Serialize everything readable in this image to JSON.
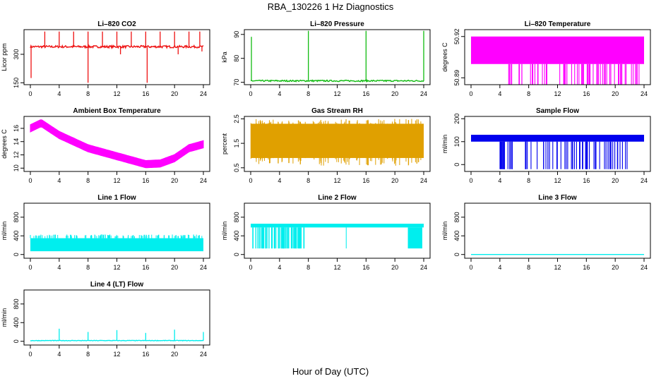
{
  "figure": {
    "title": "RBA_130226  1 Hz Diagnostics",
    "xlabel": "Hour of Day (UTC)"
  },
  "chart_data": [
    {
      "type": "line",
      "title": "Li–820 CO2",
      "ylabel": "Licor ppm",
      "color": "#ee1111",
      "xlim": [
        0,
        24
      ],
      "xticks": [
        0,
        4,
        8,
        12,
        16,
        20,
        24
      ],
      "ylim": [
        140,
        430
      ],
      "yticks": [
        150,
        300
      ],
      "series": [
        {
          "name": "CO2",
          "style": "flat",
          "base": 340,
          "noise": 6,
          "spikes_up": [
            [
              2,
              420
            ],
            [
              4,
              420
            ],
            [
              6,
              420
            ],
            [
              8,
              420
            ],
            [
              10,
              420
            ],
            [
              12,
              420
            ],
            [
              14,
              420
            ],
            [
              16,
              420
            ],
            [
              18,
              420
            ],
            [
              20,
              420
            ],
            [
              22,
              420
            ],
            [
              23.5,
              420
            ]
          ],
          "spikes_down": [
            [
              0.1,
              175
            ],
            [
              8,
              150
            ],
            [
              16.2,
              150
            ],
            [
              12.5,
              300
            ],
            [
              20.5,
              300
            ],
            [
              23.8,
              315
            ]
          ]
        }
      ]
    },
    {
      "type": "line",
      "title": "Li–820 Pressure",
      "ylabel": "kPa",
      "color": "#11bb11",
      "xlim": [
        0,
        24
      ],
      "xticks": [
        0,
        4,
        8,
        12,
        16,
        20,
        24
      ],
      "ylim": [
        69,
        92
      ],
      "yticks": [
        70,
        80,
        90
      ],
      "series": [
        {
          "name": "Pressure",
          "style": "flat",
          "base": 70.6,
          "noise": 0.3,
          "spikes_up": [
            [
              0.1,
              89
            ],
            [
              8,
              91.5
            ],
            [
              16,
              91.5
            ],
            [
              24,
              91.5
            ]
          ],
          "spikes_down": []
        }
      ]
    },
    {
      "type": "line",
      "title": "Li–820 Temperature",
      "ylabel": "degrees C",
      "color": "#ff00ff",
      "xlim": [
        0,
        24
      ],
      "xticks": [
        0,
        4,
        8,
        12,
        16,
        20,
        24
      ],
      "ylim": [
        50.885,
        50.925
      ],
      "yticks": [
        50.89,
        50.92
      ],
      "series": [
        {
          "name": "Temperature",
          "style": "band",
          "low": 50.9,
          "high": 50.92,
          "dips_to": 50.885,
          "dip_range": [
            4.8,
            23.4
          ]
        }
      ]
    },
    {
      "type": "line",
      "title": "Ambient Box Temperature",
      "ylabel": "degrees C",
      "color": "#ff00ff",
      "xlim": [
        0,
        24
      ],
      "xticks": [
        0,
        4,
        8,
        12,
        16,
        20,
        24
      ],
      "ylim": [
        9.5,
        17.8
      ],
      "yticks": [
        10,
        12,
        14,
        16
      ],
      "series": [
        {
          "name": "Ambient",
          "style": "thick",
          "x": [
            0,
            1.5,
            4,
            8,
            12,
            16,
            18,
            20,
            22,
            24
          ],
          "y": [
            16.0,
            16.8,
            15.0,
            13.0,
            11.8,
            10.6,
            10.7,
            11.5,
            13.0,
            13.6
          ],
          "width": 0.55
        }
      ]
    },
    {
      "type": "scatter",
      "title": "Gas Stream RH",
      "ylabel": "percent",
      "color": "#e0a000",
      "xlim": [
        0,
        24
      ],
      "xticks": [
        0,
        4,
        8,
        12,
        16,
        20,
        24
      ],
      "ylim": [
        0.35,
        2.6
      ],
      "yticks": [
        0.5,
        1.5,
        2.5
      ],
      "series": [
        {
          "name": "RH",
          "style": "band_range",
          "low": 0.9,
          "high": 2.3,
          "min": 0.45,
          "max": 2.5
        }
      ]
    },
    {
      "type": "line",
      "title": "Sample Flow",
      "ylabel": "ml/min",
      "color": "#0000ee",
      "xlim": [
        0,
        24
      ],
      "xticks": [
        0,
        4,
        8,
        12,
        16,
        20,
        24
      ],
      "ylim": [
        -30,
        210
      ],
      "yticks": [
        0,
        100,
        200
      ],
      "series": [
        {
          "name": "Sample",
          "style": "band",
          "low": 100,
          "high": 130,
          "dips_to": -20,
          "dip_range": [
            3.9,
            22.0
          ]
        }
      ]
    },
    {
      "type": "line",
      "title": "Line 1 Flow",
      "ylabel": "ml/min",
      "color": "#00eeee",
      "xlim": [
        0,
        24
      ],
      "xticks": [
        0,
        4,
        8,
        12,
        16,
        20,
        24
      ],
      "ylim": [
        -80,
        1100
      ],
      "yticks": [
        0,
        400,
        800
      ],
      "series": [
        {
          "name": "Line 1",
          "style": "band",
          "low": 70,
          "high": 350,
          "dips_to": 70,
          "dip_range": [
            0,
            0
          ]
        }
      ]
    },
    {
      "type": "line",
      "title": "Line 2 Flow",
      "ylabel": "ml/min",
      "color": "#00eeee",
      "xlim": [
        0,
        24
      ],
      "xticks": [
        0,
        4,
        8,
        12,
        16,
        20,
        24
      ],
      "ylim": [
        -80,
        1100
      ],
      "yticks": [
        0,
        400,
        800
      ],
      "series": [
        {
          "name": "Line 2",
          "style": "band",
          "low": 580,
          "high": 660,
          "dips_to": 130,
          "dip_range": [
            0.2,
            7.5
          ],
          "extra_dips": [
            [
              13.2,
              13.3
            ],
            [
              21.8,
              23.8
            ]
          ]
        }
      ]
    },
    {
      "type": "line",
      "title": "Line 3 Flow",
      "ylabel": "ml/min",
      "color": "#00eeee",
      "xlim": [
        0,
        24
      ],
      "xticks": [
        0,
        4,
        8,
        12,
        16,
        20,
        24
      ],
      "ylim": [
        -80,
        1100
      ],
      "yticks": [
        0,
        400,
        800
      ],
      "series": [
        {
          "name": "Line 3",
          "style": "flat",
          "base": 0,
          "noise": 0,
          "spikes_up": [],
          "spikes_down": []
        }
      ]
    },
    {
      "type": "line",
      "title": "Line 4 (LT) Flow",
      "ylabel": "ml/min",
      "color": "#00eeee",
      "xlim": [
        0,
        24
      ],
      "xticks": [
        0,
        4,
        8,
        12,
        16,
        20,
        24
      ],
      "ylim": [
        -80,
        1100
      ],
      "yticks": [
        0,
        400,
        800
      ],
      "series": [
        {
          "name": "Line 4",
          "style": "flat",
          "base": 15,
          "noise": 6,
          "spikes_up": [
            [
              4,
              270
            ],
            [
              8,
              200
            ],
            [
              12,
              240
            ],
            [
              16,
              180
            ],
            [
              20,
              250
            ],
            [
              24,
              200
            ]
          ],
          "spikes_down": []
        }
      ]
    }
  ]
}
